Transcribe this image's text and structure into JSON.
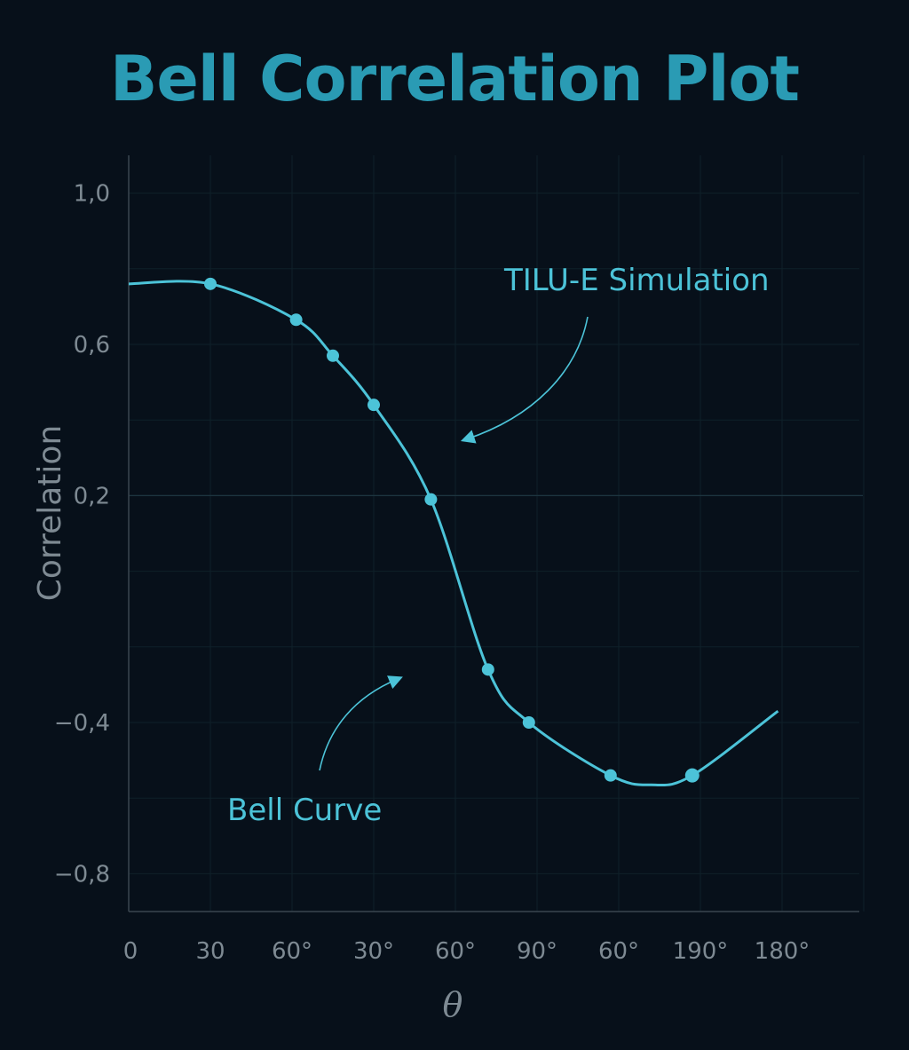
{
  "chart_data": {
    "type": "line",
    "title": "Bell Correlation Plot",
    "xlabel": "θ",
    "ylabel": "Correlation",
    "x_tick_labels": [
      "0",
      "30",
      "60°",
      "30°",
      "60°",
      "90°",
      "60°",
      "190°",
      "180°"
    ],
    "y_tick_labels": [
      "1,0",
      "0,6",
      "0,2",
      "−0,4",
      "−0,8"
    ],
    "y_tick_values": [
      1.0,
      0.6,
      0.2,
      -0.4,
      -0.8
    ],
    "ylim": [
      -0.9,
      1.1
    ],
    "xlim": [
      0,
      9
    ],
    "grid": true,
    "series": [
      {
        "x": [
          1,
          2.05,
          2.5,
          3,
          3.7,
          4.4,
          4.9,
          5.9,
          6.9
        ],
        "y": [
          0.76,
          0.665,
          0.57,
          0.44,
          0.19,
          -0.26,
          -0.4,
          -0.54,
          -0.54
        ],
        "color": "#4cc3d8"
      }
    ],
    "annotations": [
      {
        "text": "TILU-E Simulation"
      },
      {
        "text": "Bell Curve"
      }
    ]
  }
}
